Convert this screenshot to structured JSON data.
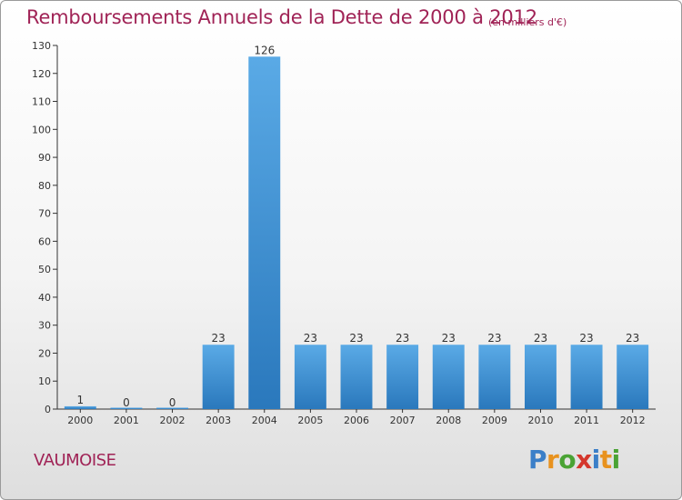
{
  "header": {
    "title": "Remboursements Annuels de la Dette de 2000 à 2012",
    "subtitle": "(en milliers d'€)"
  },
  "commune": "VAUMOISE",
  "logo": {
    "letters": [
      "P",
      "r",
      "o",
      "x",
      "i",
      "t",
      "i"
    ]
  },
  "colors": {
    "title": "#a02356",
    "bar_top": "#5aaae6",
    "bar_bottom": "#2a78bc",
    "axis": "#333333"
  },
  "chart_data": {
    "type": "bar",
    "title": "Remboursements Annuels de la Dette de 2000 à 2012",
    "subtitle": "(en milliers d'€)",
    "categories": [
      "2000",
      "2001",
      "2002",
      "2003",
      "2004",
      "2005",
      "2006",
      "2007",
      "2008",
      "2009",
      "2010",
      "2011",
      "2012"
    ],
    "values": [
      1,
      0,
      0,
      23,
      126,
      23,
      23,
      23,
      23,
      23,
      23,
      23,
      23
    ],
    "labels": [
      "1",
      "0",
      "0",
      "23",
      "126",
      "23",
      "23",
      "23",
      "23",
      "23",
      "23",
      "23",
      "23"
    ],
    "xlabel": "",
    "ylabel": "",
    "ylim": [
      0,
      130
    ],
    "yticks": [
      0,
      10,
      20,
      30,
      40,
      50,
      60,
      70,
      80,
      90,
      100,
      110,
      120,
      130
    ],
    "grid": false,
    "legend": "none"
  }
}
